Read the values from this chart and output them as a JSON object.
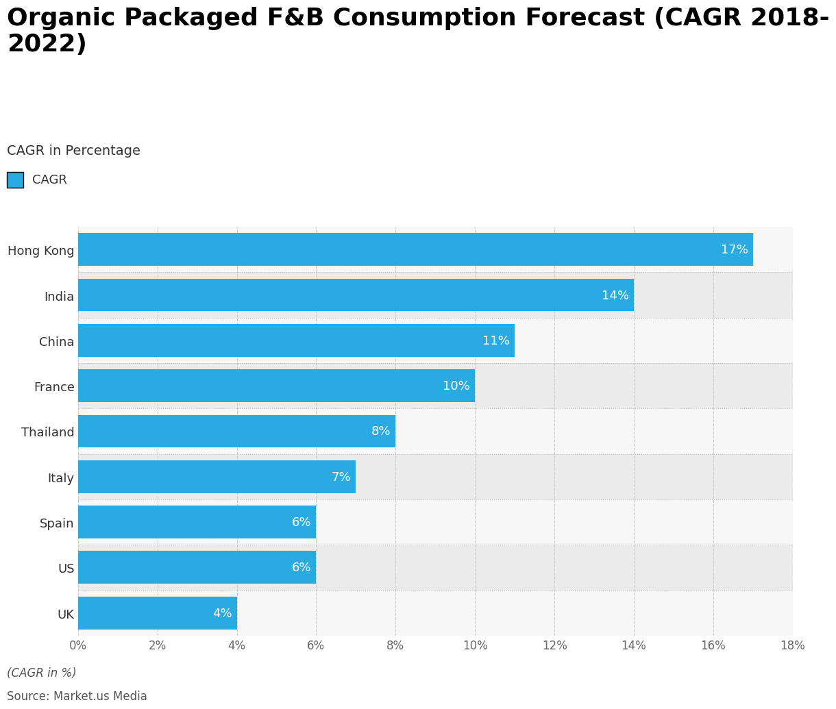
{
  "title": "Organic Packaged F&B Consumption Forecast (CAGR 2018-\n2022)",
  "subtitle": "CAGR in Percentage",
  "legend_label": "CAGR",
  "footer_line1": "(CAGR in %)",
  "footer_line2": "Source: Market.us Media",
  "categories": [
    "UK",
    "US",
    "Spain",
    "Italy",
    "Thailand",
    "France",
    "China",
    "India",
    "Hong Kong"
  ],
  "values": [
    4,
    6,
    6,
    7,
    8,
    10,
    11,
    14,
    17
  ],
  "bar_color": "#29ABE2",
  "label_color": "#FFFFFF",
  "background_color": "#FFFFFF",
  "plot_bg_odd": "#EBEBEB",
  "plot_bg_even": "#F7F7F7",
  "xlim": [
    0,
    18
  ],
  "xticks": [
    0,
    2,
    4,
    6,
    8,
    10,
    12,
    14,
    16,
    18
  ],
  "title_fontsize": 26,
  "subtitle_fontsize": 14,
  "label_fontsize": 13,
  "tick_fontsize": 12,
  "bar_label_fontsize": 13,
  "footer_fontsize": 12,
  "legend_fontsize": 13
}
